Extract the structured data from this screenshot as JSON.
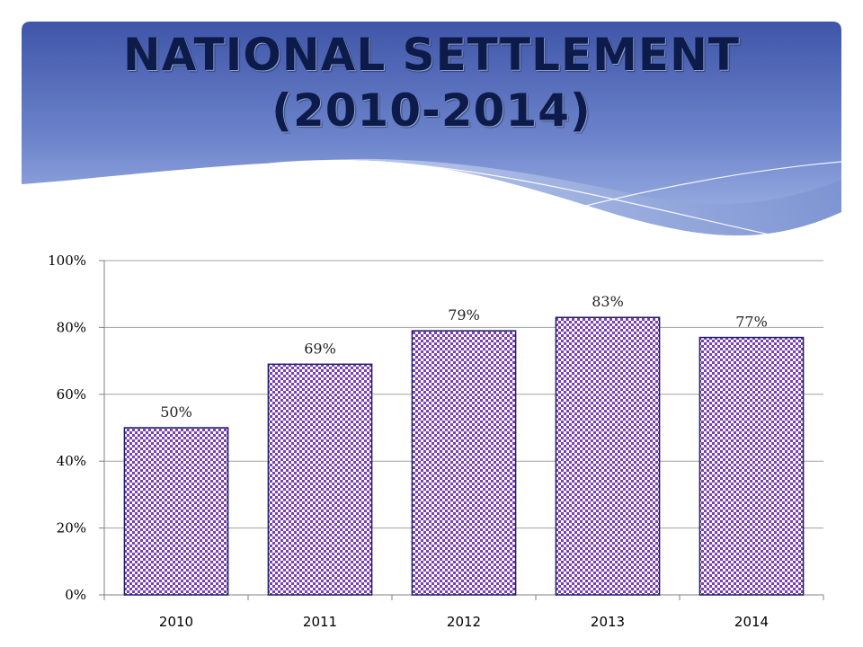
{
  "slide": {
    "title_line1": "NATIONAL SETTLEMENT",
    "title_line2": "(2010-2014)"
  },
  "colors": {
    "banner_dark": "#3f55a8",
    "banner_light": "#8ea5dc",
    "title_text": "#0d1b4a",
    "bar_purple": "#7a3fb2",
    "bar_border": "#1f1f6a",
    "gridline": "#a0a0a0"
  },
  "chart_data": {
    "type": "bar",
    "categories": [
      "2010",
      "2011",
      "2012",
      "2013",
      "2014"
    ],
    "values": [
      50,
      69,
      79,
      83,
      77
    ],
    "data_labels": [
      "50%",
      "69%",
      "79%",
      "83%",
      "77%"
    ],
    "y_ticks": [
      "0%",
      "20%",
      "40%",
      "60%",
      "80%",
      "100%"
    ],
    "ylim": [
      0,
      100
    ],
    "grid": true,
    "legend": "none",
    "fill_pattern": "checkered"
  }
}
